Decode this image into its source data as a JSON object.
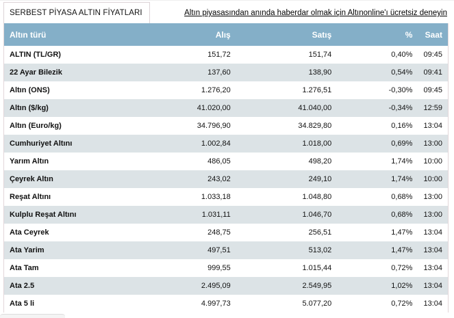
{
  "tab": {
    "label": "SERBEST PİYASA ALTIN FİYATLARI"
  },
  "promo": {
    "text": "Altın piyasasından anında haberdar olmak için Altınonline'ı ücretsiz deneyin"
  },
  "table": {
    "headers": {
      "name": "Altın türü",
      "buy": "Alış",
      "sell": "Satış",
      "pct": "%",
      "time": "Saat"
    },
    "rows": [
      {
        "name": "ALTIN (TL/GR)",
        "buy": "151,72",
        "sell": "151,74",
        "pct": "0,40%",
        "time": "09:45"
      },
      {
        "name": "22 Ayar Bilezik",
        "buy": "137,60",
        "sell": "138,90",
        "pct": "0,54%",
        "time": "09:41"
      },
      {
        "name": "Altın (ONS)",
        "buy": "1.276,20",
        "sell": "1.276,51",
        "pct": "-0,30%",
        "time": "09:45"
      },
      {
        "name": "Altın ($/kg)",
        "buy": "41.020,00",
        "sell": "41.040,00",
        "pct": "-0,34%",
        "time": "12:59"
      },
      {
        "name": "Altın (Euro/kg)",
        "buy": "34.796,90",
        "sell": "34.829,80",
        "pct": "0,16%",
        "time": "13:04"
      },
      {
        "name": "Cumhuriyet Altını",
        "buy": "1.002,84",
        "sell": "1.018,00",
        "pct": "0,69%",
        "time": "13:00"
      },
      {
        "name": "Yarım Altın",
        "buy": "486,05",
        "sell": "498,20",
        "pct": "1,74%",
        "time": "10:00"
      },
      {
        "name": "Çeyrek Altın",
        "buy": "243,02",
        "sell": "249,10",
        "pct": "1,74%",
        "time": "10:00"
      },
      {
        "name": "Reşat Altını",
        "buy": "1.033,18",
        "sell": "1.048,80",
        "pct": "0,68%",
        "time": "13:00"
      },
      {
        "name": "Kulplu Reşat Altını",
        "buy": "1.031,11",
        "sell": "1.046,70",
        "pct": "0,68%",
        "time": "13:00"
      },
      {
        "name": "Ata Ceyrek",
        "buy": "248,75",
        "sell": "256,51",
        "pct": "1,47%",
        "time": "13:04"
      },
      {
        "name": "Ata Yarim",
        "buy": "497,51",
        "sell": "513,02",
        "pct": "1,47%",
        "time": "13:04"
      },
      {
        "name": "Ata Tam",
        "buy": "999,55",
        "sell": "1.015,44",
        "pct": "0,72%",
        "time": "13:04"
      },
      {
        "name": "Ata 2.5",
        "buy": "2.495,09",
        "sell": "2.549,95",
        "pct": "1,02%",
        "time": "13:04"
      },
      {
        "name": "Ata 5 li",
        "buy": "4.997,73",
        "sell": "5.077,20",
        "pct": "0,72%",
        "time": "13:04"
      }
    ]
  },
  "colors": {
    "header_bg": "#84afc8",
    "alt_row_bg": "#dce3e6"
  }
}
